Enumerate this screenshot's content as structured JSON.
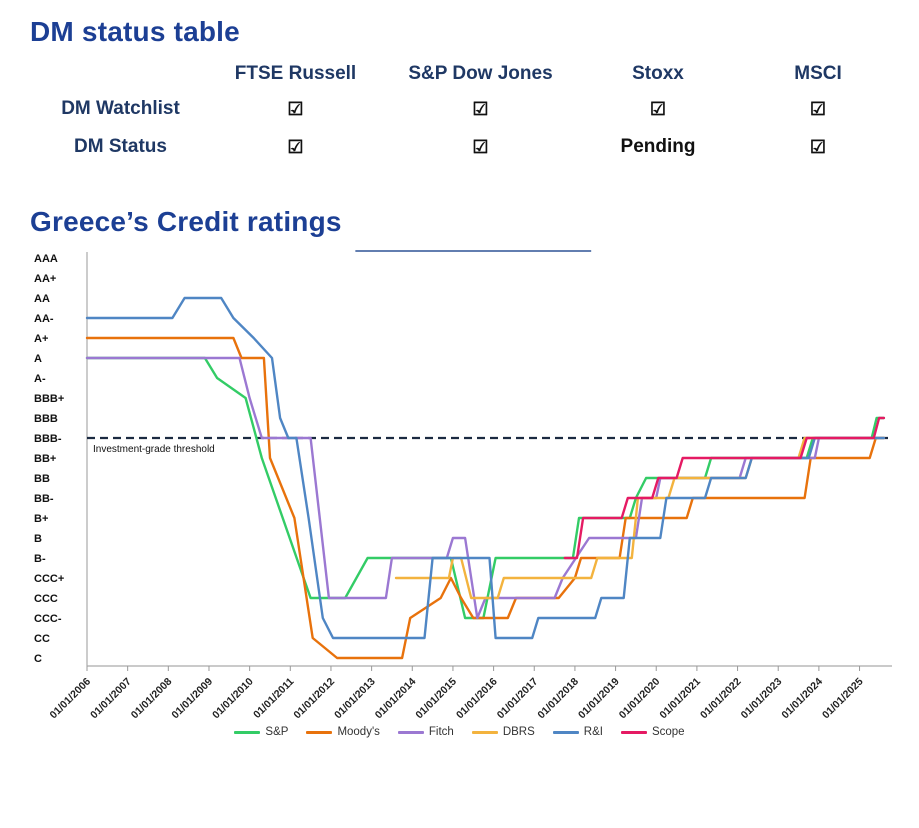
{
  "colors": {
    "heading_blue": "#1c3f94",
    "table_navy": "#1f3864",
    "threshold_line": "#1b2a41",
    "axis_gray": "#aaaaaa"
  },
  "status_table": {
    "title": "DM status table",
    "columns": [
      "FTSE Russell",
      "S&P Dow Jones",
      "Stoxx",
      "MSCI"
    ],
    "rows": [
      {
        "label": "DM Watchlist",
        "values": [
          "☑",
          "☑",
          "☑",
          "☑"
        ]
      },
      {
        "label": "DM Status",
        "values": [
          "☑",
          "☑",
          "Pending",
          "☑"
        ]
      }
    ]
  },
  "ratings_section": {
    "title": "Greece’s Credit ratings"
  },
  "chart_data": {
    "type": "line",
    "title": "Greece’s Credit ratings",
    "y_axis": {
      "categories_top_to_bottom": [
        "AAA",
        "AA+",
        "AA",
        "AA-",
        "A+",
        "A",
        "A-",
        "BBB+",
        "BBB",
        "BBB-",
        "BB+",
        "BB",
        "BB-",
        "B+",
        "B",
        "B-",
        "CCC+",
        "CCC",
        "CCC-",
        "CC",
        "C"
      ],
      "scale_note": "AAA=21 down to C=1"
    },
    "x_ticks": [
      "01/01/2006",
      "01/01/2007",
      "01/01/2008",
      "01/01/2009",
      "01/01/2010",
      "01/01/2011",
      "01/01/2012",
      "01/01/2013",
      "01/01/2014",
      "01/01/2015",
      "01/01/2016",
      "01/01/2017",
      "01/01/2018",
      "01/01/2019",
      "01/01/2020",
      "01/01/2021",
      "01/01/2022",
      "01/01/2023",
      "01/01/2024",
      "01/01/2025"
    ],
    "x_range": [
      2006,
      2025.7
    ],
    "grid": "off",
    "legend_position": "bottom",
    "threshold": {
      "label": "Investment-grade threshold",
      "rating": "BBB-",
      "value": 12
    },
    "series": [
      {
        "name": "S&P",
        "color": "#33cc66",
        "points": [
          [
            2006,
            16
          ],
          [
            2008.9,
            16
          ],
          [
            2009.2,
            15
          ],
          [
            2009.9,
            14
          ],
          [
            2010.3,
            11
          ],
          [
            2011.5,
            4
          ],
          [
            2012.35,
            4
          ],
          [
            2012.9,
            6
          ],
          [
            2014.95,
            6
          ],
          [
            2015.3,
            3
          ],
          [
            2015.75,
            3
          ],
          [
            2016.05,
            6
          ],
          [
            2017.95,
            6
          ],
          [
            2018.1,
            8
          ],
          [
            2019.35,
            8
          ],
          [
            2019.5,
            9
          ],
          [
            2019.75,
            10
          ],
          [
            2021.2,
            10
          ],
          [
            2021.35,
            11
          ],
          [
            2023.7,
            11
          ],
          [
            2023.85,
            12
          ],
          [
            2025.3,
            12
          ],
          [
            2025.42,
            13
          ],
          [
            2025.6,
            13
          ]
        ]
      },
      {
        "name": "Moody's",
        "color": "#e8720c",
        "points": [
          [
            2006,
            17
          ],
          [
            2009.6,
            17
          ],
          [
            2009.8,
            16
          ],
          [
            2010.35,
            16
          ],
          [
            2010.5,
            11
          ],
          [
            2011.1,
            8
          ],
          [
            2011.55,
            2
          ],
          [
            2012.15,
            1
          ],
          [
            2013.75,
            1
          ],
          [
            2013.95,
            3
          ],
          [
            2014.7,
            4
          ],
          [
            2014.95,
            5
          ],
          [
            2015.2,
            4
          ],
          [
            2015.5,
            3
          ],
          [
            2016.35,
            3
          ],
          [
            2016.55,
            4
          ],
          [
            2017.6,
            4
          ],
          [
            2018.0,
            5
          ],
          [
            2018.15,
            6
          ],
          [
            2019.1,
            6
          ],
          [
            2019.25,
            8
          ],
          [
            2020.75,
            8
          ],
          [
            2020.9,
            9
          ],
          [
            2023.65,
            9
          ],
          [
            2023.8,
            11
          ],
          [
            2025.25,
            11
          ],
          [
            2025.4,
            12
          ],
          [
            2025.6,
            12
          ]
        ]
      },
      {
        "name": "Fitch",
        "color": "#9b78d2",
        "points": [
          [
            2006,
            16
          ],
          [
            2009.75,
            16
          ],
          [
            2010.0,
            14
          ],
          [
            2010.3,
            12
          ],
          [
            2011.5,
            12
          ],
          [
            2011.95,
            4
          ],
          [
            2013.35,
            4
          ],
          [
            2013.5,
            6
          ],
          [
            2014.85,
            6
          ],
          [
            2015.0,
            7
          ],
          [
            2015.3,
            7
          ],
          [
            2015.6,
            3
          ],
          [
            2015.8,
            4
          ],
          [
            2017.5,
            4
          ],
          [
            2017.7,
            5
          ],
          [
            2018.35,
            7
          ],
          [
            2019.5,
            7
          ],
          [
            2019.65,
            9
          ],
          [
            2020.0,
            9
          ],
          [
            2020.1,
            10
          ],
          [
            2022.05,
            10
          ],
          [
            2022.2,
            11
          ],
          [
            2023.9,
            11
          ],
          [
            2024.0,
            12
          ],
          [
            2025.6,
            12
          ]
        ]
      },
      {
        "name": "DBRS",
        "color": "#f3b33e",
        "points": [
          [
            2013.6,
            5
          ],
          [
            2014.9,
            5
          ],
          [
            2015.0,
            6
          ],
          [
            2015.2,
            6
          ],
          [
            2015.45,
            4
          ],
          [
            2016.1,
            4
          ],
          [
            2016.25,
            5
          ],
          [
            2018.4,
            5
          ],
          [
            2018.55,
            6
          ],
          [
            2019.4,
            6
          ],
          [
            2019.55,
            9
          ],
          [
            2020.3,
            9
          ],
          [
            2020.45,
            10
          ],
          [
            2022.2,
            10
          ],
          [
            2022.35,
            11
          ],
          [
            2023.5,
            11
          ],
          [
            2023.65,
            12
          ],
          [
            2025.6,
            12
          ]
        ]
      },
      {
        "name": "R&I",
        "color": "#4f86c4",
        "points": [
          [
            2006,
            18
          ],
          [
            2008.1,
            18
          ],
          [
            2008.4,
            19
          ],
          [
            2009.3,
            19
          ],
          [
            2009.6,
            18
          ],
          [
            2010.1,
            17
          ],
          [
            2010.55,
            16
          ],
          [
            2010.75,
            13
          ],
          [
            2010.95,
            12
          ],
          [
            2011.15,
            12
          ],
          [
            2011.45,
            8
          ],
          [
            2011.8,
            3
          ],
          [
            2012.05,
            2
          ],
          [
            2014.3,
            2
          ],
          [
            2014.5,
            6
          ],
          [
            2015.9,
            6
          ],
          [
            2016.05,
            2
          ],
          [
            2016.95,
            2
          ],
          [
            2017.1,
            3
          ],
          [
            2018.5,
            3
          ],
          [
            2018.65,
            4
          ],
          [
            2019.2,
            4
          ],
          [
            2019.35,
            7
          ],
          [
            2020.1,
            7
          ],
          [
            2020.25,
            9
          ],
          [
            2021.2,
            9
          ],
          [
            2021.35,
            10
          ],
          [
            2022.2,
            10
          ],
          [
            2022.35,
            11
          ],
          [
            2023.75,
            11
          ],
          [
            2023.9,
            12
          ],
          [
            2025.6,
            12
          ]
        ]
      },
      {
        "name": "Scope",
        "color": "#e51a63",
        "points": [
          [
            2017.75,
            6
          ],
          [
            2018.05,
            6
          ],
          [
            2018.2,
            8
          ],
          [
            2019.15,
            8
          ],
          [
            2019.3,
            9
          ],
          [
            2019.9,
            9
          ],
          [
            2020.05,
            10
          ],
          [
            2020.5,
            10
          ],
          [
            2020.65,
            11
          ],
          [
            2023.55,
            11
          ],
          [
            2023.7,
            12
          ],
          [
            2025.35,
            12
          ],
          [
            2025.48,
            13
          ],
          [
            2025.6,
            13
          ]
        ]
      }
    ]
  }
}
